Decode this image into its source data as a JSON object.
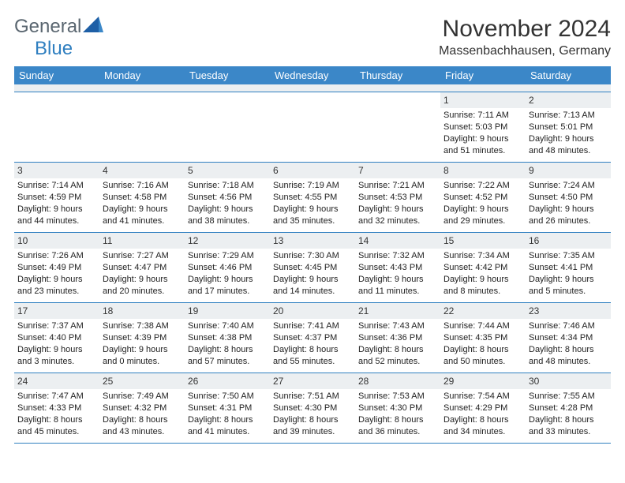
{
  "logo": {
    "text1": "General",
    "text2": "Blue"
  },
  "title": "November 2024",
  "location": "Massenbachhausen, Germany",
  "colors": {
    "header_bg": "#3b87c8",
    "daynum_bg": "#eceff1",
    "border": "#2f7fc0",
    "logo_gray": "#5a6670",
    "logo_blue": "#2f7fc0"
  },
  "day_names": [
    "Sunday",
    "Monday",
    "Tuesday",
    "Wednesday",
    "Thursday",
    "Friday",
    "Saturday"
  ],
  "weeks": [
    [
      {
        "empty": true
      },
      {
        "empty": true
      },
      {
        "empty": true
      },
      {
        "empty": true
      },
      {
        "empty": true
      },
      {
        "day": "1",
        "sunrise": "Sunrise: 7:11 AM",
        "sunset": "Sunset: 5:03 PM",
        "daylight1": "Daylight: 9 hours",
        "daylight2": "and 51 minutes."
      },
      {
        "day": "2",
        "sunrise": "Sunrise: 7:13 AM",
        "sunset": "Sunset: 5:01 PM",
        "daylight1": "Daylight: 9 hours",
        "daylight2": "and 48 minutes."
      }
    ],
    [
      {
        "day": "3",
        "sunrise": "Sunrise: 7:14 AM",
        "sunset": "Sunset: 4:59 PM",
        "daylight1": "Daylight: 9 hours",
        "daylight2": "and 44 minutes."
      },
      {
        "day": "4",
        "sunrise": "Sunrise: 7:16 AM",
        "sunset": "Sunset: 4:58 PM",
        "daylight1": "Daylight: 9 hours",
        "daylight2": "and 41 minutes."
      },
      {
        "day": "5",
        "sunrise": "Sunrise: 7:18 AM",
        "sunset": "Sunset: 4:56 PM",
        "daylight1": "Daylight: 9 hours",
        "daylight2": "and 38 minutes."
      },
      {
        "day": "6",
        "sunrise": "Sunrise: 7:19 AM",
        "sunset": "Sunset: 4:55 PM",
        "daylight1": "Daylight: 9 hours",
        "daylight2": "and 35 minutes."
      },
      {
        "day": "7",
        "sunrise": "Sunrise: 7:21 AM",
        "sunset": "Sunset: 4:53 PM",
        "daylight1": "Daylight: 9 hours",
        "daylight2": "and 32 minutes."
      },
      {
        "day": "8",
        "sunrise": "Sunrise: 7:22 AM",
        "sunset": "Sunset: 4:52 PM",
        "daylight1": "Daylight: 9 hours",
        "daylight2": "and 29 minutes."
      },
      {
        "day": "9",
        "sunrise": "Sunrise: 7:24 AM",
        "sunset": "Sunset: 4:50 PM",
        "daylight1": "Daylight: 9 hours",
        "daylight2": "and 26 minutes."
      }
    ],
    [
      {
        "day": "10",
        "sunrise": "Sunrise: 7:26 AM",
        "sunset": "Sunset: 4:49 PM",
        "daylight1": "Daylight: 9 hours",
        "daylight2": "and 23 minutes."
      },
      {
        "day": "11",
        "sunrise": "Sunrise: 7:27 AM",
        "sunset": "Sunset: 4:47 PM",
        "daylight1": "Daylight: 9 hours",
        "daylight2": "and 20 minutes."
      },
      {
        "day": "12",
        "sunrise": "Sunrise: 7:29 AM",
        "sunset": "Sunset: 4:46 PM",
        "daylight1": "Daylight: 9 hours",
        "daylight2": "and 17 minutes."
      },
      {
        "day": "13",
        "sunrise": "Sunrise: 7:30 AM",
        "sunset": "Sunset: 4:45 PM",
        "daylight1": "Daylight: 9 hours",
        "daylight2": "and 14 minutes."
      },
      {
        "day": "14",
        "sunrise": "Sunrise: 7:32 AM",
        "sunset": "Sunset: 4:43 PM",
        "daylight1": "Daylight: 9 hours",
        "daylight2": "and 11 minutes."
      },
      {
        "day": "15",
        "sunrise": "Sunrise: 7:34 AM",
        "sunset": "Sunset: 4:42 PM",
        "daylight1": "Daylight: 9 hours",
        "daylight2": "and 8 minutes."
      },
      {
        "day": "16",
        "sunrise": "Sunrise: 7:35 AM",
        "sunset": "Sunset: 4:41 PM",
        "daylight1": "Daylight: 9 hours",
        "daylight2": "and 5 minutes."
      }
    ],
    [
      {
        "day": "17",
        "sunrise": "Sunrise: 7:37 AM",
        "sunset": "Sunset: 4:40 PM",
        "daylight1": "Daylight: 9 hours",
        "daylight2": "and 3 minutes."
      },
      {
        "day": "18",
        "sunrise": "Sunrise: 7:38 AM",
        "sunset": "Sunset: 4:39 PM",
        "daylight1": "Daylight: 9 hours",
        "daylight2": "and 0 minutes."
      },
      {
        "day": "19",
        "sunrise": "Sunrise: 7:40 AM",
        "sunset": "Sunset: 4:38 PM",
        "daylight1": "Daylight: 8 hours",
        "daylight2": "and 57 minutes."
      },
      {
        "day": "20",
        "sunrise": "Sunrise: 7:41 AM",
        "sunset": "Sunset: 4:37 PM",
        "daylight1": "Daylight: 8 hours",
        "daylight2": "and 55 minutes."
      },
      {
        "day": "21",
        "sunrise": "Sunrise: 7:43 AM",
        "sunset": "Sunset: 4:36 PM",
        "daylight1": "Daylight: 8 hours",
        "daylight2": "and 52 minutes."
      },
      {
        "day": "22",
        "sunrise": "Sunrise: 7:44 AM",
        "sunset": "Sunset: 4:35 PM",
        "daylight1": "Daylight: 8 hours",
        "daylight2": "and 50 minutes."
      },
      {
        "day": "23",
        "sunrise": "Sunrise: 7:46 AM",
        "sunset": "Sunset: 4:34 PM",
        "daylight1": "Daylight: 8 hours",
        "daylight2": "and 48 minutes."
      }
    ],
    [
      {
        "day": "24",
        "sunrise": "Sunrise: 7:47 AM",
        "sunset": "Sunset: 4:33 PM",
        "daylight1": "Daylight: 8 hours",
        "daylight2": "and 45 minutes."
      },
      {
        "day": "25",
        "sunrise": "Sunrise: 7:49 AM",
        "sunset": "Sunset: 4:32 PM",
        "daylight1": "Daylight: 8 hours",
        "daylight2": "and 43 minutes."
      },
      {
        "day": "26",
        "sunrise": "Sunrise: 7:50 AM",
        "sunset": "Sunset: 4:31 PM",
        "daylight1": "Daylight: 8 hours",
        "daylight2": "and 41 minutes."
      },
      {
        "day": "27",
        "sunrise": "Sunrise: 7:51 AM",
        "sunset": "Sunset: 4:30 PM",
        "daylight1": "Daylight: 8 hours",
        "daylight2": "and 39 minutes."
      },
      {
        "day": "28",
        "sunrise": "Sunrise: 7:53 AM",
        "sunset": "Sunset: 4:30 PM",
        "daylight1": "Daylight: 8 hours",
        "daylight2": "and 36 minutes."
      },
      {
        "day": "29",
        "sunrise": "Sunrise: 7:54 AM",
        "sunset": "Sunset: 4:29 PM",
        "daylight1": "Daylight: 8 hours",
        "daylight2": "and 34 minutes."
      },
      {
        "day": "30",
        "sunrise": "Sunrise: 7:55 AM",
        "sunset": "Sunset: 4:28 PM",
        "daylight1": "Daylight: 8 hours",
        "daylight2": "and 33 minutes."
      }
    ]
  ]
}
